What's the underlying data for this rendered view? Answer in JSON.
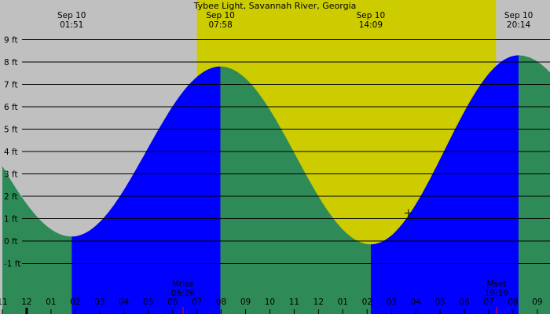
{
  "chart_data": {
    "type": "area",
    "title": "Tybee Light, Savannah River, Georgia",
    "units": "ft",
    "ylim": [
      -1.5,
      9.5
    ],
    "y_ticks": [
      {
        "value": 9,
        "label": "9 ft"
      },
      {
        "value": 8,
        "label": "8 ft"
      },
      {
        "value": 7,
        "label": "7 ft"
      },
      {
        "value": 6,
        "label": "6 ft"
      },
      {
        "value": 5,
        "label": "5 ft"
      },
      {
        "value": 4,
        "label": "4 ft"
      },
      {
        "value": 3,
        "label": "3 ft"
      },
      {
        "value": 2,
        "label": "2 ft"
      },
      {
        "value": 1,
        "label": "1 ft"
      },
      {
        "value": 0,
        "label": "0 ft"
      },
      {
        "value": -1,
        "label": "-1 ft"
      }
    ],
    "x_range_hours": [
      -1,
      34
    ],
    "x_ticks": [
      {
        "hour": -1,
        "label": "11"
      },
      {
        "hour": 0,
        "label": "12"
      },
      {
        "hour": 1,
        "label": "01"
      },
      {
        "hour": 2,
        "label": "02"
      },
      {
        "hour": 3,
        "label": "03"
      },
      {
        "hour": 4,
        "label": "04"
      },
      {
        "hour": 5,
        "label": "05"
      },
      {
        "hour": 6,
        "label": "06"
      },
      {
        "hour": 7,
        "label": "07"
      },
      {
        "hour": 8,
        "label": "08"
      },
      {
        "hour": 9,
        "label": "09"
      },
      {
        "hour": 10,
        "label": "10"
      },
      {
        "hour": 11,
        "label": "11"
      },
      {
        "hour": 12,
        "label": "12"
      },
      {
        "hour": 13,
        "label": "01"
      },
      {
        "hour": 14,
        "label": "02"
      },
      {
        "hour": 15,
        "label": "03"
      },
      {
        "hour": 16,
        "label": "04"
      },
      {
        "hour": 17,
        "label": "05"
      },
      {
        "hour": 18,
        "label": "06"
      },
      {
        "hour": 19,
        "label": "07"
      },
      {
        "hour": 20,
        "label": "08"
      },
      {
        "hour": 21,
        "label": "09"
      }
    ],
    "tide_extremes": [
      {
        "date": "Sep 10",
        "time": "01:51",
        "hour": 1.85,
        "height": 0.2,
        "kind": "low"
      },
      {
        "date": "Sep 10",
        "time": "07:58",
        "hour": 7.97,
        "height": 7.8,
        "kind": "high"
      },
      {
        "date": "Sep 10",
        "time": "14:09",
        "hour": 14.15,
        "height": -0.15,
        "kind": "low"
      },
      {
        "date": "Sep 10",
        "time": "20:14",
        "hour": 20.23,
        "height": 8.3,
        "kind": "high"
      }
    ],
    "daylight": {
      "start_hour": 7.0,
      "end_hour": 19.3
    },
    "moon_events": [
      {
        "label": "Mrise",
        "time": "06:26",
        "hour": 6.43
      },
      {
        "label": "Mset",
        "time": "19:19",
        "hour": 19.32
      }
    ],
    "current_marker": {
      "hour": 15.7,
      "height": 1.25
    },
    "colors": {
      "night_sky": "#c0c0c0",
      "day_sky": "#cccc00",
      "rising_tide": "#0000ff",
      "falling_tide": "#2e8b57",
      "gridline": "#000000",
      "moon_tick": "#ff0000",
      "now_tick": "#000000"
    }
  }
}
